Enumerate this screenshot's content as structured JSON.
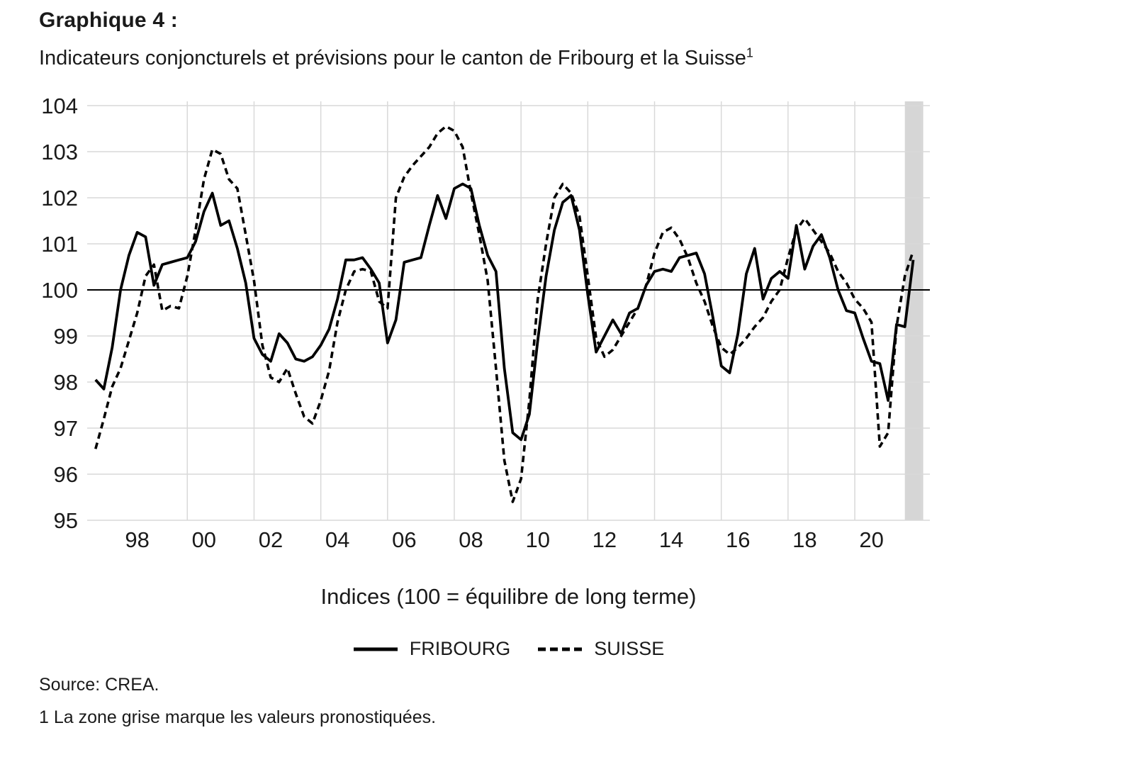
{
  "page": {
    "title": "Graphique 4 :",
    "subtitle": "Indicateurs conjoncturels et prévisions pour le canton de Fribourg et la Suisse",
    "subtitle_sup": "1",
    "source": "Source: CREA.",
    "footnote": "1 La zone grise marque les valeurs pronostiquées."
  },
  "chart_data": {
    "type": "line",
    "title": "",
    "xlabel": "",
    "ylabel": "",
    "caption": "Indices (100 = équilibre de long terme)",
    "y_ticks": [
      95,
      96,
      97,
      98,
      99,
      100,
      101,
      102,
      103,
      104
    ],
    "x_tick_years": [
      1998,
      2000,
      2002,
      2004,
      2006,
      2008,
      2010,
      2012,
      2014,
      2016,
      2018,
      2020
    ],
    "x_tick_labels": [
      "98",
      "00",
      "02",
      "04",
      "06",
      "08",
      "10",
      "12",
      "14",
      "16",
      "18",
      "20"
    ],
    "x_range": [
      1996.5,
      2021.75
    ],
    "y_range": [
      95,
      104
    ],
    "grid_vertical_years": [
      1999.5,
      2001.5,
      2003.5,
      2005.5,
      2007.5,
      2009.5,
      2011.5,
      2013.5,
      2015.5,
      2017.5,
      2019.5,
      2021.5
    ],
    "reference_line_y": 100,
    "forecast_band": {
      "x_start": 2021.0,
      "x_end": 2021.55,
      "color": "#d6d6d6",
      "meaning": "valeurs pronostiquées"
    },
    "legend_position": "bottom",
    "grid": true,
    "colors": {
      "line": "#000000",
      "grid": "#d9d9d9",
      "text": "#1a1a1a",
      "reference_line": "#000000"
    },
    "x": [
      1996.75,
      1997.0,
      1997.25,
      1997.5,
      1997.75,
      1998.0,
      1998.25,
      1998.5,
      1998.75,
      1999.0,
      1999.25,
      1999.5,
      1999.75,
      2000.0,
      2000.25,
      2000.5,
      2000.75,
      2001.0,
      2001.25,
      2001.5,
      2001.75,
      2002.0,
      2002.25,
      2002.5,
      2002.75,
      2003.0,
      2003.25,
      2003.5,
      2003.75,
      2004.0,
      2004.25,
      2004.5,
      2004.75,
      2005.0,
      2005.25,
      2005.5,
      2005.75,
      2006.0,
      2006.25,
      2006.5,
      2006.75,
      2007.0,
      2007.25,
      2007.5,
      2007.75,
      2008.0,
      2008.25,
      2008.5,
      2008.75,
      2009.0,
      2009.25,
      2009.5,
      2009.75,
      2010.0,
      2010.25,
      2010.5,
      2010.75,
      2011.0,
      2011.25,
      2011.5,
      2011.75,
      2012.0,
      2012.25,
      2012.5,
      2012.75,
      2013.0,
      2013.25,
      2013.5,
      2013.75,
      2014.0,
      2014.25,
      2014.5,
      2014.75,
      2015.0,
      2015.25,
      2015.5,
      2015.75,
      2016.0,
      2016.25,
      2016.5,
      2016.75,
      2017.0,
      2017.25,
      2017.5,
      2017.75,
      2018.0,
      2018.25,
      2018.5,
      2018.75,
      2019.0,
      2019.25,
      2019.5,
      2019.75,
      2020.0,
      2020.25,
      2020.5,
      2020.75,
      2021.0,
      2021.25
    ],
    "series": [
      {
        "name": "FRIBOURG",
        "style": "solid",
        "values": [
          98.05,
          97.85,
          98.75,
          100.0,
          100.75,
          101.25,
          101.15,
          100.1,
          100.55,
          100.6,
          100.65,
          100.7,
          101.05,
          101.7,
          102.1,
          101.4,
          101.5,
          100.9,
          100.15,
          98.95,
          98.6,
          98.45,
          99.05,
          98.85,
          98.5,
          98.45,
          98.55,
          98.8,
          99.15,
          99.8,
          100.65,
          100.65,
          100.7,
          100.45,
          100.15,
          98.85,
          99.35,
          100.6,
          100.65,
          100.7,
          101.4,
          102.05,
          101.55,
          102.2,
          102.3,
          102.2,
          101.4,
          100.75,
          100.4,
          98.3,
          96.9,
          96.75,
          97.3,
          98.9,
          100.3,
          101.3,
          101.9,
          102.05,
          101.3,
          99.9,
          98.65,
          99.0,
          99.35,
          99.05,
          99.5,
          99.6,
          100.1,
          100.4,
          100.45,
          100.4,
          100.7,
          100.75,
          100.8,
          100.35,
          99.4,
          98.35,
          98.2,
          99.05,
          100.35,
          100.9,
          99.8,
          100.25,
          100.4,
          100.25,
          101.4,
          100.45,
          100.95,
          101.2,
          100.7,
          100.0,
          99.55,
          99.5,
          98.95,
          98.45,
          98.4,
          97.6,
          99.25,
          99.2,
          100.65
        ]
      },
      {
        "name": "SUISSE",
        "style": "dashed",
        "values": [
          96.55,
          97.2,
          97.9,
          98.3,
          98.9,
          99.5,
          100.3,
          100.55,
          99.55,
          99.65,
          99.6,
          100.3,
          101.3,
          102.4,
          103.05,
          102.95,
          102.4,
          102.2,
          101.2,
          100.2,
          98.8,
          98.1,
          98.0,
          98.3,
          97.75,
          97.25,
          97.1,
          97.6,
          98.25,
          99.3,
          100.0,
          100.4,
          100.45,
          100.4,
          99.75,
          99.6,
          102.0,
          102.45,
          102.7,
          102.9,
          103.1,
          103.4,
          103.55,
          103.45,
          103.1,
          102.1,
          101.2,
          100.2,
          98.3,
          96.3,
          95.4,
          95.9,
          97.6,
          99.8,
          101.0,
          102.0,
          102.3,
          102.1,
          101.6,
          100.3,
          98.95,
          98.55,
          98.7,
          99.0,
          99.3,
          99.6,
          100.1,
          100.8,
          101.25,
          101.35,
          101.1,
          100.7,
          100.15,
          99.75,
          99.2,
          98.75,
          98.6,
          98.75,
          98.95,
          99.2,
          99.4,
          99.75,
          100.0,
          100.7,
          101.3,
          101.55,
          101.3,
          101.05,
          100.8,
          100.4,
          100.15,
          99.8,
          99.6,
          99.3,
          96.6,
          96.9,
          99.2,
          100.3,
          100.85
        ]
      }
    ]
  }
}
